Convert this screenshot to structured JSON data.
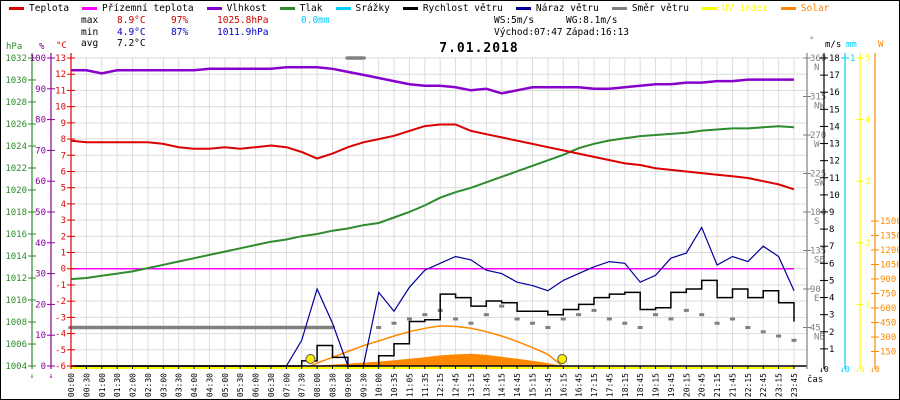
{
  "title": "7.01.2018",
  "legend": {
    "items": [
      {
        "label": "Teplota",
        "color": "#dd0000"
      },
      {
        "label": "Přízemní teplota",
        "color": "#ff00ff"
      },
      {
        "label": "Vlhkost",
        "color": "#8800cc"
      },
      {
        "label": "Tlak",
        "color": "#2e8b2e"
      },
      {
        "label": "Srážky",
        "color": "#00ccff"
      },
      {
        "label": "Rychlost větru",
        "color": "#000000"
      },
      {
        "label": "Náraz větru",
        "color": "#000099"
      },
      {
        "label": "Směr větru",
        "color": "#808080"
      },
      {
        "label": "UV index",
        "color": "#ffff00",
        "text_color": "#ffff00"
      },
      {
        "label": "Solar",
        "color": "#ff8800",
        "text_color": "#ff8800"
      }
    ]
  },
  "stats": {
    "max_label": "max",
    "max_temp": "8.9°C",
    "max_hum": "97%",
    "max_pres": "1025.8hPa",
    "max_rain": "0.0mm",
    "min_label": "min",
    "min_temp": "4.9°C",
    "min_hum": "87%",
    "min_pres": "1011.9hPa",
    "avg_label": "avg",
    "avg_temp": "7.2°C",
    "ws": "WS:5m/s",
    "wg": "WG:8.1m/s",
    "sunrise": "Východ:07:47",
    "sunset": "Západ:16:13"
  },
  "chart_data": {
    "type": "line",
    "title": "7.01.2018",
    "xlabel": "čas",
    "grid": true,
    "x_categories": [
      "00:00",
      "00:30",
      "01:00",
      "01:30",
      "02:00",
      "02:30",
      "03:00",
      "03:30",
      "04:00",
      "04:30",
      "05:00",
      "05:30",
      "06:00",
      "06:30",
      "07:00",
      "07:30",
      "08:00",
      "08:30",
      "09:00",
      "09:30",
      "10:00",
      "10:35",
      "11:05",
      "11:35",
      "12:15",
      "12:45",
      "13:15",
      "13:45",
      "14:15",
      "14:45",
      "15:15",
      "15:45",
      "16:15",
      "16:45",
      "17:15",
      "17:45",
      "18:15",
      "18:45",
      "19:15",
      "19:45",
      "20:15",
      "20:45",
      "21:15",
      "21:45",
      "22:15",
      "22:45",
      "23:15",
      "23:45"
    ],
    "sun": {
      "vychod": "07:47",
      "zapad": "16:13"
    },
    "axes": {
      "hpa": {
        "unit": "hPa",
        "color": "#2e8b2e",
        "min": 1004,
        "max": 1032,
        "tick": 2
      },
      "pct": {
        "unit": "%",
        "color": "#880099",
        "min": 0,
        "max": 100,
        "tick": 10
      },
      "temp": {
        "unit": "°C",
        "color": "#dd0000",
        "min": -6,
        "max": 13,
        "tick": 1
      },
      "dir": {
        "unit": "°",
        "color": "#808080",
        "min": 0,
        "max": 360,
        "ticks": [
          [
            360,
            "N"
          ],
          [
            315,
            "NW"
          ],
          [
            270,
            "W"
          ],
          [
            225,
            "SW"
          ],
          [
            180,
            "S"
          ],
          [
            135,
            "SE"
          ],
          [
            90,
            "E"
          ],
          [
            45,
            "NE"
          ]
        ]
      },
      "ms": {
        "unit": "m/s",
        "color": "#000000",
        "min": 0,
        "max": 18,
        "tick": 1,
        "bottom_mark": "↓0"
      },
      "mm": {
        "unit": "mm",
        "color": "#00ccff",
        "min": 0,
        "max": 1,
        "tick": 1,
        "bottom_mark": "↓0"
      },
      "uv": {
        "unit": "",
        "color": "#ffff00",
        "min": 0,
        "max": 5,
        "tick": 1,
        "bottom_mark": "↓0"
      },
      "w": {
        "unit": "W",
        "color": "#ff8800",
        "min": 0,
        "max": 1500,
        "tick": 150,
        "bottom_mark": "↓0"
      }
    },
    "series": [
      {
        "name": "UV index",
        "axis": "uv",
        "color": "#ffff00",
        "kind": "line",
        "width": 2,
        "offset_y": 2,
        "values": [
          0,
          0,
          0,
          0,
          0,
          0,
          0,
          0,
          0,
          0,
          0,
          0,
          0,
          0,
          0,
          0,
          0,
          0,
          0,
          0,
          0,
          0,
          0,
          0,
          0,
          0,
          0,
          0,
          0,
          0,
          0,
          0,
          0,
          0,
          0,
          0,
          0,
          0,
          0,
          0,
          0,
          0,
          0,
          0,
          0,
          0,
          0,
          0
        ]
      },
      {
        "name": "Solar (teoretické maximum)",
        "axis": "w",
        "color": "#ff8800",
        "kind": "line",
        "width": 1.5,
        "sun_clip": true,
        "values": [
          0,
          0,
          0,
          0,
          0,
          0,
          0,
          0,
          0,
          0,
          0,
          0,
          0,
          0,
          0,
          0,
          30,
          90,
          150,
          210,
          260,
          310,
          355,
          390,
          415,
          410,
          390,
          355,
          310,
          255,
          190,
          120,
          0,
          0,
          0,
          0,
          0,
          0,
          0,
          0,
          0,
          0,
          0,
          0,
          0,
          0,
          0,
          0
        ]
      },
      {
        "name": "Solar",
        "axis": "w",
        "color": "#ff8800",
        "kind": "area",
        "sun_clip": true,
        "values": [
          0,
          0,
          0,
          0,
          0,
          0,
          0,
          0,
          0,
          0,
          0,
          0,
          0,
          0,
          0,
          0,
          5,
          15,
          25,
          35,
          45,
          60,
          75,
          90,
          110,
          120,
          127,
          115,
          95,
          75,
          55,
          30,
          0,
          0,
          0,
          0,
          0,
          0,
          0,
          0,
          0,
          0,
          0,
          0,
          0,
          0,
          0,
          0
        ]
      },
      {
        "name": "Srážky",
        "axis": "mm",
        "color": "#00ccff",
        "kind": "line",
        "width": 1,
        "values": [
          0,
          0,
          0,
          0,
          0,
          0,
          0,
          0,
          0,
          0,
          0,
          0,
          0,
          0,
          0,
          0,
          0,
          0,
          0,
          0,
          0,
          0,
          0,
          0,
          0,
          0,
          0,
          0,
          0,
          0,
          0,
          0,
          0,
          0,
          0,
          0,
          0,
          0,
          0,
          0,
          0,
          0,
          0,
          0,
          0,
          0,
          0,
          0
        ]
      },
      {
        "name": "Směr větru",
        "axis": "dir",
        "color": "#808080",
        "kind": "dots",
        "width": 3,
        "values": [
          45,
          45,
          45,
          45,
          45,
          45,
          45,
          45,
          45,
          45,
          45,
          45,
          45,
          45,
          45,
          45,
          45,
          45,
          360,
          360,
          45,
          50,
          55,
          60,
          65,
          55,
          50,
          60,
          70,
          55,
          50,
          45,
          55,
          60,
          65,
          55,
          50,
          45,
          60,
          55,
          65,
          60,
          50,
          55,
          45,
          40,
          35,
          30
        ]
      },
      {
        "name": "Přízemní teplota",
        "axis": "temp",
        "color": "#ff00ff",
        "kind": "line",
        "width": 1.5,
        "values": [
          0,
          0,
          0,
          0,
          0,
          0,
          0,
          0,
          0,
          0,
          0,
          0,
          0,
          0,
          0,
          0,
          0,
          0,
          0,
          0,
          0,
          0,
          0,
          0,
          0,
          0,
          0,
          0,
          0,
          0,
          0,
          0,
          0,
          0,
          0,
          0,
          0,
          0,
          0,
          0,
          0,
          0,
          0,
          0,
          0,
          0,
          0,
          0
        ]
      },
      {
        "name": "Tlak",
        "axis": "hpa",
        "color": "#2e8b2e",
        "kind": "line",
        "width": 2,
        "values": [
          1011.9,
          1012.0,
          1012.2,
          1012.4,
          1012.6,
          1012.9,
          1013.2,
          1013.5,
          1013.8,
          1014.1,
          1014.4,
          1014.7,
          1015.0,
          1015.3,
          1015.5,
          1015.8,
          1016.0,
          1016.3,
          1016.5,
          1016.8,
          1017.0,
          1017.5,
          1018.0,
          1018.6,
          1019.3,
          1019.8,
          1020.2,
          1020.7,
          1021.2,
          1021.7,
          1022.2,
          1022.7,
          1023.2,
          1023.8,
          1024.2,
          1024.5,
          1024.7,
          1024.9,
          1025.0,
          1025.1,
          1025.2,
          1025.4,
          1025.5,
          1025.6,
          1025.6,
          1025.7,
          1025.8,
          1025.7
        ]
      },
      {
        "name": "Vlhkost",
        "axis": "pct",
        "color": "#8800cc",
        "kind": "line",
        "width": 2.5,
        "values": [
          96,
          96,
          95,
          96,
          96,
          96,
          96,
          96,
          96,
          96.5,
          96.5,
          96.5,
          96.5,
          96.5,
          97,
          97,
          97,
          96.5,
          95.5,
          94.5,
          93.5,
          92.5,
          91.5,
          91,
          91,
          90.5,
          89.5,
          90,
          88.5,
          89.5,
          90.5,
          90.5,
          90.5,
          90.5,
          90,
          90,
          90.5,
          91,
          91.5,
          91.5,
          92,
          92,
          92.5,
          92.5,
          93,
          93,
          93,
          93
        ]
      },
      {
        "name": "Teplota",
        "axis": "temp",
        "color": "#dd0000",
        "kind": "line",
        "width": 2,
        "values": [
          7.9,
          7.8,
          7.8,
          7.8,
          7.8,
          7.8,
          7.7,
          7.5,
          7.4,
          7.4,
          7.5,
          7.4,
          7.5,
          7.6,
          7.5,
          7.2,
          6.8,
          7.1,
          7.5,
          7.8,
          8.0,
          8.2,
          8.5,
          8.8,
          8.9,
          8.9,
          8.5,
          8.3,
          8.1,
          7.9,
          7.7,
          7.5,
          7.3,
          7.1,
          6.9,
          6.7,
          6.5,
          6.4,
          6.2,
          6.1,
          6.0,
          5.9,
          5.8,
          5.7,
          5.6,
          5.4,
          5.2,
          4.9
        ]
      },
      {
        "name": "Náraz větru",
        "axis": "ms",
        "color": "#000099",
        "kind": "line",
        "width": 1.2,
        "values": [
          0,
          0,
          0,
          0,
          0,
          0,
          0,
          0,
          0,
          0,
          0,
          0,
          0,
          0,
          0,
          1.5,
          4.5,
          2.5,
          0,
          0,
          4.3,
          3.2,
          4.6,
          5.6,
          6.0,
          6.4,
          6.2,
          5.6,
          5.4,
          4.9,
          4.7,
          4.4,
          5.0,
          5.4,
          5.8,
          6.1,
          6.0,
          4.9,
          5.3,
          6.3,
          6.6,
          8.1,
          5.9,
          6.4,
          6.1,
          7.0,
          6.4,
          4.4
        ]
      },
      {
        "name": "Rychlost větru",
        "axis": "ms",
        "color": "#000000",
        "kind": "step",
        "width": 1.5,
        "values": [
          0,
          0,
          0,
          0,
          0,
          0,
          0,
          0,
          0,
          0,
          0,
          0,
          0,
          0,
          0,
          0.3,
          1.2,
          0.5,
          0,
          0,
          0.6,
          1.3,
          2.6,
          2.7,
          4.2,
          4.0,
          3.5,
          3.8,
          3.7,
          3.2,
          3.2,
          3.0,
          3.3,
          3.6,
          4.0,
          4.2,
          4.3,
          3.3,
          3.4,
          4.3,
          4.5,
          5.0,
          4.0,
          4.5,
          4.0,
          4.4,
          3.7,
          2.6
        ]
      }
    ]
  }
}
